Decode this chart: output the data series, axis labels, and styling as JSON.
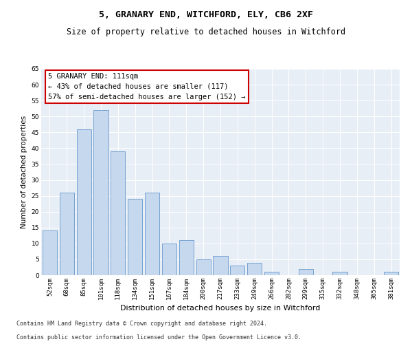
{
  "title1": "5, GRANARY END, WITCHFORD, ELY, CB6 2XF",
  "title2": "Size of property relative to detached houses in Witchford",
  "xlabel": "Distribution of detached houses by size in Witchford",
  "ylabel": "Number of detached properties",
  "categories": [
    "52sqm",
    "68sqm",
    "85sqm",
    "101sqm",
    "118sqm",
    "134sqm",
    "151sqm",
    "167sqm",
    "184sqm",
    "200sqm",
    "217sqm",
    "233sqm",
    "249sqm",
    "266sqm",
    "282sqm",
    "299sqm",
    "315sqm",
    "332sqm",
    "348sqm",
    "365sqm",
    "381sqm"
  ],
  "values": [
    14,
    26,
    46,
    52,
    39,
    24,
    26,
    10,
    11,
    5,
    6,
    3,
    4,
    1,
    0,
    2,
    0,
    1,
    0,
    0,
    1
  ],
  "bar_color": "#c5d8ee",
  "bar_edge_color": "#6699cc",
  "annotation_line1": "5 GRANARY END: 111sqm",
  "annotation_line2": "← 43% of detached houses are smaller (117)",
  "annotation_line3": "57% of semi-detached houses are larger (152) →",
  "annotation_box_color": "#ffffff",
  "annotation_box_edge": "#cc0000",
  "ylim": [
    0,
    65
  ],
  "yticks": [
    0,
    5,
    10,
    15,
    20,
    25,
    30,
    35,
    40,
    45,
    50,
    55,
    60,
    65
  ],
  "bg_color": "#e8eef6",
  "footnote1": "Contains HM Land Registry data © Crown copyright and database right 2024.",
  "footnote2": "Contains public sector information licensed under the Open Government Licence v3.0.",
  "title1_fontsize": 9.5,
  "title2_fontsize": 8.5,
  "xlabel_fontsize": 8,
  "ylabel_fontsize": 7.5,
  "tick_fontsize": 6.5,
  "annot_fontsize": 7.5,
  "footnote_fontsize": 6
}
